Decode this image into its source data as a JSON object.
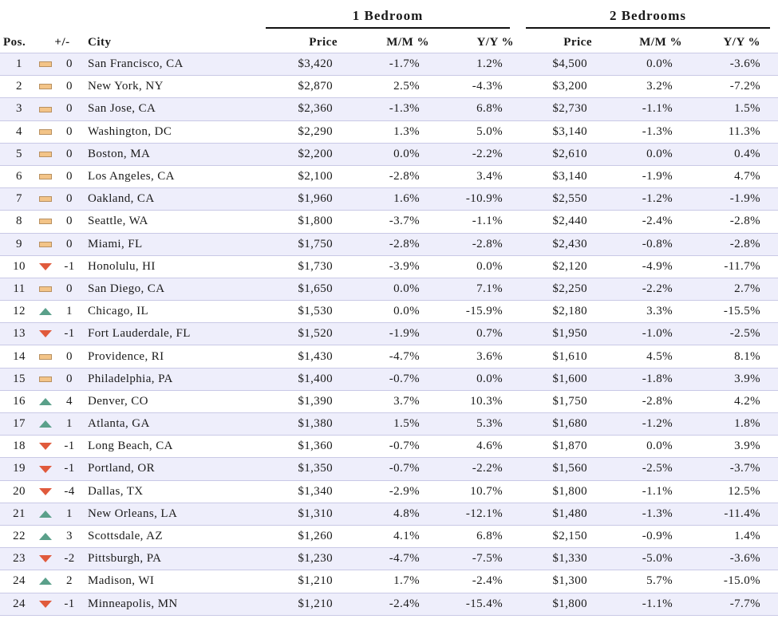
{
  "headers": {
    "group1": "1 Bedroom",
    "group2": "2 Bedrooms",
    "pos": "Pos.",
    "change": "+/-",
    "city": "City",
    "price1": "Price",
    "mm1": "M/M %",
    "yy1": "Y/Y %",
    "price2": "Price",
    "mm2": "M/M %",
    "yy2": "Y/Y %"
  },
  "indicator_colors": {
    "flat": "#f3c488",
    "up": "#5aa08a",
    "down": "#e05a3c"
  },
  "rows": [
    {
      "pos": "1",
      "trend": "flat",
      "change": "0",
      "city": "San Francisco, CA",
      "p1": "$3,420",
      "mm1": "-1.7%",
      "yy1": "1.2%",
      "p2": "$4,500",
      "mm2": "0.0%",
      "yy2": "-3.6%"
    },
    {
      "pos": "2",
      "trend": "flat",
      "change": "0",
      "city": "New York, NY",
      "p1": "$2,870",
      "mm1": "2.5%",
      "yy1": "-4.3%",
      "p2": "$3,200",
      "mm2": "3.2%",
      "yy2": "-7.2%"
    },
    {
      "pos": "3",
      "trend": "flat",
      "change": "0",
      "city": "San Jose, CA",
      "p1": "$2,360",
      "mm1": "-1.3%",
      "yy1": "6.8%",
      "p2": "$2,730",
      "mm2": "-1.1%",
      "yy2": "1.5%"
    },
    {
      "pos": "4",
      "trend": "flat",
      "change": "0",
      "city": "Washington, DC",
      "p1": "$2,290",
      "mm1": "1.3%",
      "yy1": "5.0%",
      "p2": "$3,140",
      "mm2": "-1.3%",
      "yy2": "11.3%"
    },
    {
      "pos": "5",
      "trend": "flat",
      "change": "0",
      "city": "Boston, MA",
      "p1": "$2,200",
      "mm1": "0.0%",
      "yy1": "-2.2%",
      "p2": "$2,610",
      "mm2": "0.0%",
      "yy2": "0.4%"
    },
    {
      "pos": "6",
      "trend": "flat",
      "change": "0",
      "city": "Los Angeles, CA",
      "p1": "$2,100",
      "mm1": "-2.8%",
      "yy1": "3.4%",
      "p2": "$3,140",
      "mm2": "-1.9%",
      "yy2": "4.7%"
    },
    {
      "pos": "7",
      "trend": "flat",
      "change": "0",
      "city": "Oakland, CA",
      "p1": "$1,960",
      "mm1": "1.6%",
      "yy1": "-10.9%",
      "p2": "$2,550",
      "mm2": "-1.2%",
      "yy2": "-1.9%"
    },
    {
      "pos": "8",
      "trend": "flat",
      "change": "0",
      "city": "Seattle, WA",
      "p1": "$1,800",
      "mm1": "-3.7%",
      "yy1": "-1.1%",
      "p2": "$2,440",
      "mm2": "-2.4%",
      "yy2": "-2.8%"
    },
    {
      "pos": "9",
      "trend": "flat",
      "change": "0",
      "city": "Miami, FL",
      "p1": "$1,750",
      "mm1": "-2.8%",
      "yy1": "-2.8%",
      "p2": "$2,430",
      "mm2": "-0.8%",
      "yy2": "-2.8%"
    },
    {
      "pos": "10",
      "trend": "down",
      "change": "-1",
      "city": "Honolulu, HI",
      "p1": "$1,730",
      "mm1": "-3.9%",
      "yy1": "0.0%",
      "p2": "$2,120",
      "mm2": "-4.9%",
      "yy2": "-11.7%"
    },
    {
      "pos": "11",
      "trend": "flat",
      "change": "0",
      "city": "San Diego, CA",
      "p1": "$1,650",
      "mm1": "0.0%",
      "yy1": "7.1%",
      "p2": "$2,250",
      "mm2": "-2.2%",
      "yy2": "2.7%"
    },
    {
      "pos": "12",
      "trend": "up",
      "change": "1",
      "city": "Chicago, IL",
      "p1": "$1,530",
      "mm1": "0.0%",
      "yy1": "-15.9%",
      "p2": "$2,180",
      "mm2": "3.3%",
      "yy2": "-15.5%"
    },
    {
      "pos": "13",
      "trend": "down",
      "change": "-1",
      "city": "Fort Lauderdale, FL",
      "p1": "$1,520",
      "mm1": "-1.9%",
      "yy1": "0.7%",
      "p2": "$1,950",
      "mm2": "-1.0%",
      "yy2": "-2.5%"
    },
    {
      "pos": "14",
      "trend": "flat",
      "change": "0",
      "city": "Providence, RI",
      "p1": "$1,430",
      "mm1": "-4.7%",
      "yy1": "3.6%",
      "p2": "$1,610",
      "mm2": "4.5%",
      "yy2": "8.1%"
    },
    {
      "pos": "15",
      "trend": "flat",
      "change": "0",
      "city": "Philadelphia, PA",
      "p1": "$1,400",
      "mm1": "-0.7%",
      "yy1": "0.0%",
      "p2": "$1,600",
      "mm2": "-1.8%",
      "yy2": "3.9%"
    },
    {
      "pos": "16",
      "trend": "up",
      "change": "4",
      "city": "Denver, CO",
      "p1": "$1,390",
      "mm1": "3.7%",
      "yy1": "10.3%",
      "p2": "$1,750",
      "mm2": "-2.8%",
      "yy2": "4.2%"
    },
    {
      "pos": "17",
      "trend": "up",
      "change": "1",
      "city": "Atlanta, GA",
      "p1": "$1,380",
      "mm1": "1.5%",
      "yy1": "5.3%",
      "p2": "$1,680",
      "mm2": "-1.2%",
      "yy2": "1.8%"
    },
    {
      "pos": "18",
      "trend": "down",
      "change": "-1",
      "city": "Long Beach, CA",
      "p1": "$1,360",
      "mm1": "-0.7%",
      "yy1": "4.6%",
      "p2": "$1,870",
      "mm2": "0.0%",
      "yy2": "3.9%"
    },
    {
      "pos": "19",
      "trend": "down",
      "change": "-1",
      "city": "Portland, OR",
      "p1": "$1,350",
      "mm1": "-0.7%",
      "yy1": "-2.2%",
      "p2": "$1,560",
      "mm2": "-2.5%",
      "yy2": "-3.7%"
    },
    {
      "pos": "20",
      "trend": "down",
      "change": "-4",
      "city": "Dallas, TX",
      "p1": "$1,340",
      "mm1": "-2.9%",
      "yy1": "10.7%",
      "p2": "$1,800",
      "mm2": "-1.1%",
      "yy2": "12.5%"
    },
    {
      "pos": "21",
      "trend": "up",
      "change": "1",
      "city": "New Orleans, LA",
      "p1": "$1,310",
      "mm1": "4.8%",
      "yy1": "-12.1%",
      "p2": "$1,480",
      "mm2": "-1.3%",
      "yy2": "-11.4%"
    },
    {
      "pos": "22",
      "trend": "up",
      "change": "3",
      "city": "Scottsdale, AZ",
      "p1": "$1,260",
      "mm1": "4.1%",
      "yy1": "6.8%",
      "p2": "$2,150",
      "mm2": "-0.9%",
      "yy2": "1.4%"
    },
    {
      "pos": "23",
      "trend": "down",
      "change": "-2",
      "city": "Pittsburgh, PA",
      "p1": "$1,230",
      "mm1": "-4.7%",
      "yy1": "-7.5%",
      "p2": "$1,330",
      "mm2": "-5.0%",
      "yy2": "-3.6%"
    },
    {
      "pos": "24",
      "trend": "up",
      "change": "2",
      "city": "Madison, WI",
      "p1": "$1,210",
      "mm1": "1.7%",
      "yy1": "-2.4%",
      "p2": "$1,300",
      "mm2": "5.7%",
      "yy2": "-15.0%"
    },
    {
      "pos": "24",
      "trend": "down",
      "change": "-1",
      "city": "Minneapolis, MN",
      "p1": "$1,210",
      "mm1": "-2.4%",
      "yy1": "-15.4%",
      "p2": "$1,800",
      "mm2": "-1.1%",
      "yy2": "-7.7%"
    }
  ]
}
